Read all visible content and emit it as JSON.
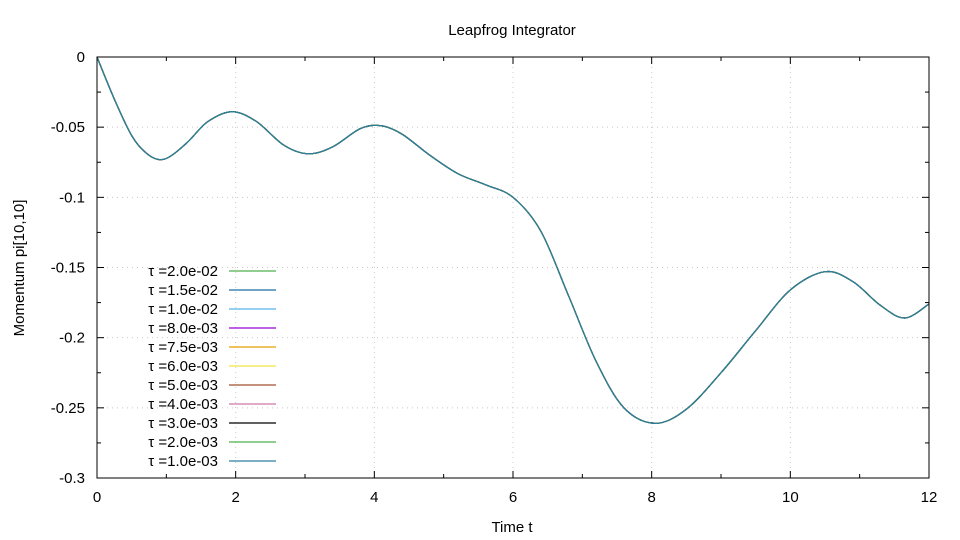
{
  "chart_data": {
    "type": "line",
    "title": "Leapfrog Integrator",
    "xlabel": "Time t",
    "ylabel": "Momentum pi[10,10]",
    "xlim": [
      0,
      12
    ],
    "ylim": [
      -0.3,
      0
    ],
    "xticks": [
      "0",
      "2",
      "4",
      "6",
      "8",
      "10",
      "12"
    ],
    "yticks": [
      "0",
      "-0.05",
      "-0.1",
      "-0.15",
      "-0.2",
      "-0.25",
      "-0.3"
    ],
    "grid": true,
    "legend_position": "bottom-left",
    "x": [
      0,
      0.25,
      0.5,
      0.7,
      0.88,
      1.05,
      1.3,
      1.6,
      1.95,
      2.3,
      2.7,
      3.05,
      3.4,
      3.8,
      4.1,
      4.4,
      4.8,
      5.2,
      5.6,
      6.0,
      6.4,
      6.8,
      7.2,
      7.6,
      8.05,
      8.5,
      9.0,
      9.5,
      10.0,
      10.5,
      10.9,
      11.3,
      11.65,
      12.0
    ],
    "series": [
      {
        "name": "τ =2.0e-02",
        "color": "#4daf4a",
        "values": [
          0,
          -0.03,
          -0.056,
          -0.068,
          -0.073,
          -0.071,
          -0.061,
          -0.046,
          -0.039,
          -0.046,
          -0.063,
          -0.069,
          -0.064,
          -0.051,
          -0.049,
          -0.055,
          -0.07,
          -0.083,
          -0.091,
          -0.1,
          -0.124,
          -0.17,
          -0.217,
          -0.25,
          -0.261,
          -0.251,
          -0.225,
          -0.195,
          -0.166,
          -0.153,
          -0.16,
          -0.177,
          -0.186,
          -0.176
        ]
      },
      {
        "name": "τ =1.5e-02",
        "color": "#1a6ea0",
        "values": [
          0,
          -0.03,
          -0.056,
          -0.068,
          -0.073,
          -0.071,
          -0.061,
          -0.046,
          -0.039,
          -0.046,
          -0.063,
          -0.069,
          -0.064,
          -0.051,
          -0.049,
          -0.055,
          -0.07,
          -0.083,
          -0.091,
          -0.1,
          -0.124,
          -0.17,
          -0.217,
          -0.25,
          -0.261,
          -0.251,
          -0.225,
          -0.195,
          -0.166,
          -0.153,
          -0.16,
          -0.177,
          -0.186,
          -0.176
        ]
      },
      {
        "name": "τ =1.0e-02",
        "color": "#56b4e9",
        "values": [
          0,
          -0.03,
          -0.056,
          -0.068,
          -0.073,
          -0.071,
          -0.061,
          -0.046,
          -0.039,
          -0.046,
          -0.063,
          -0.069,
          -0.064,
          -0.051,
          -0.049,
          -0.055,
          -0.07,
          -0.083,
          -0.091,
          -0.1,
          -0.124,
          -0.17,
          -0.217,
          -0.25,
          -0.261,
          -0.251,
          -0.225,
          -0.195,
          -0.166,
          -0.153,
          -0.16,
          -0.177,
          -0.186,
          -0.176
        ]
      },
      {
        "name": "τ =8.0e-03",
        "color": "#9400d3",
        "values": [
          0,
          -0.03,
          -0.056,
          -0.068,
          -0.073,
          -0.071,
          -0.061,
          -0.046,
          -0.039,
          -0.046,
          -0.063,
          -0.069,
          -0.064,
          -0.051,
          -0.049,
          -0.055,
          -0.07,
          -0.083,
          -0.091,
          -0.1,
          -0.124,
          -0.17,
          -0.217,
          -0.25,
          -0.261,
          -0.251,
          -0.225,
          -0.195,
          -0.166,
          -0.153,
          -0.16,
          -0.177,
          -0.186,
          -0.176
        ]
      },
      {
        "name": "τ =7.5e-03",
        "color": "#e69f00",
        "values": [
          0,
          -0.03,
          -0.056,
          -0.068,
          -0.073,
          -0.071,
          -0.061,
          -0.046,
          -0.039,
          -0.046,
          -0.063,
          -0.069,
          -0.064,
          -0.051,
          -0.049,
          -0.055,
          -0.07,
          -0.083,
          -0.091,
          -0.1,
          -0.124,
          -0.17,
          -0.217,
          -0.25,
          -0.261,
          -0.251,
          -0.225,
          -0.195,
          -0.166,
          -0.153,
          -0.16,
          -0.177,
          -0.186,
          -0.176
        ]
      },
      {
        "name": "τ =6.0e-03",
        "color": "#f0e442",
        "values": [
          0,
          -0.03,
          -0.056,
          -0.068,
          -0.073,
          -0.071,
          -0.061,
          -0.046,
          -0.039,
          -0.046,
          -0.063,
          -0.069,
          -0.064,
          -0.051,
          -0.049,
          -0.055,
          -0.07,
          -0.083,
          -0.091,
          -0.1,
          -0.124,
          -0.17,
          -0.217,
          -0.25,
          -0.261,
          -0.251,
          -0.225,
          -0.195,
          -0.166,
          -0.153,
          -0.16,
          -0.177,
          -0.186,
          -0.176
        ]
      },
      {
        "name": "τ =5.0e-03",
        "color": "#a0522d",
        "values": [
          0,
          -0.03,
          -0.056,
          -0.068,
          -0.073,
          -0.071,
          -0.061,
          -0.046,
          -0.039,
          -0.046,
          -0.063,
          -0.069,
          -0.064,
          -0.051,
          -0.049,
          -0.055,
          -0.07,
          -0.083,
          -0.091,
          -0.1,
          -0.124,
          -0.17,
          -0.217,
          -0.25,
          -0.261,
          -0.251,
          -0.225,
          -0.195,
          -0.166,
          -0.153,
          -0.16,
          -0.177,
          -0.186,
          -0.176
        ]
      },
      {
        "name": "τ =4.0e-03",
        "color": "#cc79a7",
        "values": [
          0,
          -0.03,
          -0.056,
          -0.068,
          -0.073,
          -0.071,
          -0.061,
          -0.046,
          -0.039,
          -0.046,
          -0.063,
          -0.069,
          -0.064,
          -0.051,
          -0.049,
          -0.055,
          -0.07,
          -0.083,
          -0.091,
          -0.1,
          -0.124,
          -0.17,
          -0.217,
          -0.25,
          -0.261,
          -0.251,
          -0.225,
          -0.195,
          -0.166,
          -0.153,
          -0.16,
          -0.177,
          -0.186,
          -0.176
        ]
      },
      {
        "name": "τ =3.0e-03",
        "color": "#000000",
        "values": [
          0,
          -0.03,
          -0.056,
          -0.068,
          -0.073,
          -0.071,
          -0.061,
          -0.046,
          -0.039,
          -0.046,
          -0.063,
          -0.069,
          -0.064,
          -0.051,
          -0.049,
          -0.055,
          -0.07,
          -0.083,
          -0.091,
          -0.1,
          -0.124,
          -0.17,
          -0.217,
          -0.25,
          -0.261,
          -0.251,
          -0.225,
          -0.195,
          -0.166,
          -0.153,
          -0.16,
          -0.177,
          -0.186,
          -0.176
        ]
      },
      {
        "name": "τ =2.0e-03",
        "color": "#4daf4a",
        "values": [
          0,
          -0.03,
          -0.056,
          -0.068,
          -0.073,
          -0.071,
          -0.061,
          -0.046,
          -0.039,
          -0.046,
          -0.063,
          -0.069,
          -0.064,
          -0.051,
          -0.049,
          -0.055,
          -0.07,
          -0.083,
          -0.091,
          -0.1,
          -0.124,
          -0.17,
          -0.217,
          -0.25,
          -0.261,
          -0.251,
          -0.225,
          -0.195,
          -0.166,
          -0.153,
          -0.16,
          -0.177,
          -0.186,
          -0.176
        ]
      },
      {
        "name": "τ =1.0e-03",
        "color": "#2a7fa0",
        "values": [
          0,
          -0.03,
          -0.056,
          -0.068,
          -0.073,
          -0.071,
          -0.061,
          -0.046,
          -0.039,
          -0.046,
          -0.063,
          -0.069,
          -0.064,
          -0.051,
          -0.049,
          -0.055,
          -0.07,
          -0.083,
          -0.091,
          -0.1,
          -0.124,
          -0.17,
          -0.217,
          -0.25,
          -0.261,
          -0.251,
          -0.225,
          -0.195,
          -0.166,
          -0.153,
          -0.16,
          -0.177,
          -0.186,
          -0.176
        ]
      }
    ]
  }
}
